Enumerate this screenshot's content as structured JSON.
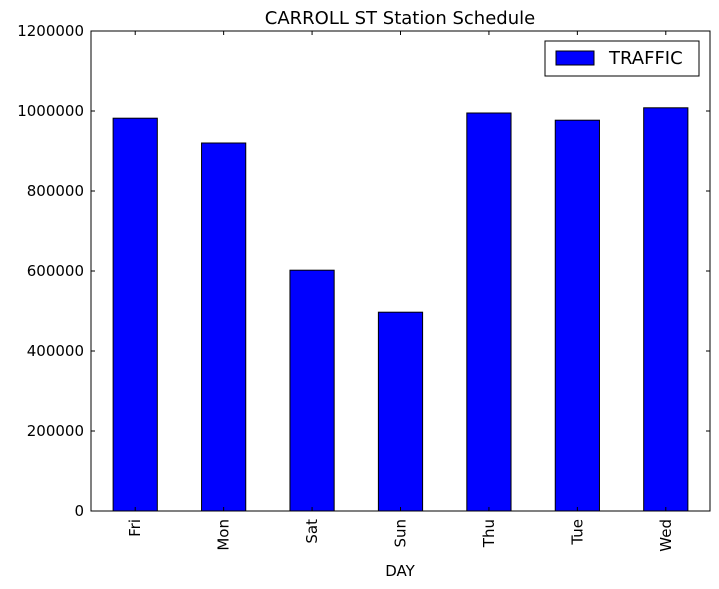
{
  "chart_data": {
    "type": "bar",
    "title": "CARROLL ST Station Schedule",
    "xlabel": "DAY",
    "ylabel": "",
    "categories": [
      "Fri",
      "Mon",
      "Sat",
      "Sun",
      "Thu",
      "Tue",
      "Wed"
    ],
    "series": [
      {
        "name": "TRAFFIC",
        "color": "#0000ff",
        "values": [
          982000,
          920000,
          602000,
          497000,
          995000,
          977000,
          1008000
        ]
      }
    ],
    "ylim": [
      0,
      1200000
    ],
    "yticks": [
      0,
      200000,
      400000,
      600000,
      800000,
      1000000,
      1200000
    ],
    "ytick_labels": [
      "0",
      "200000",
      "400000",
      "600000",
      "800000",
      "1000000",
      "1200000"
    ],
    "grid": false,
    "legend_position": "top-right"
  }
}
